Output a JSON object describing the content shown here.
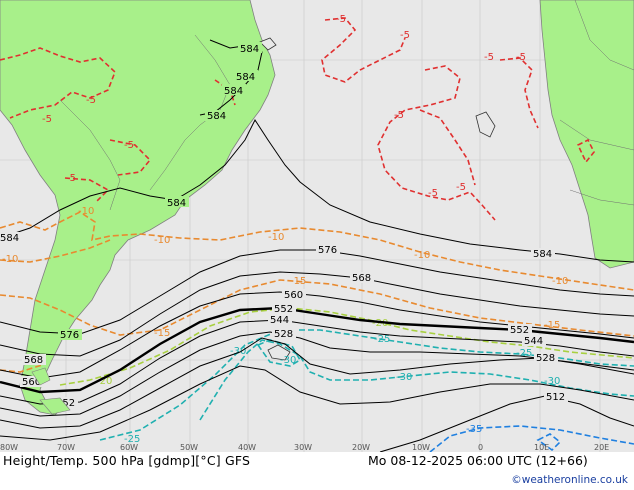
{
  "footer": {
    "title": "Height/Temp. 500 hPa [gdmp][°C] GFS",
    "datetime": "Mo 08-12-2025 06:00 UTC (12+66)",
    "credit": "©weatheronline.co.uk"
  },
  "longitude_labels": [
    "80W",
    "70W",
    "60W",
    "50W",
    "40W",
    "30W",
    "20W",
    "10W",
    "0",
    "10E",
    "20E"
  ],
  "height_labels": {
    "h584": "584",
    "h576": "576",
    "h568": "568",
    "h560": "560",
    "h552": "552",
    "h544": "544",
    "h528": "528",
    "h512": "512"
  },
  "temp_labels": {
    "t5": "-5",
    "t10": "-10",
    "t15": "-15",
    "t20": "-20",
    "t25": "-25",
    "t30": "-30",
    "t35": "-35"
  },
  "colors": {
    "ocean": "#e8e8e8",
    "land": "#a8f08a",
    "height_contour": "#000000",
    "temp_m5": "#e03030",
    "temp_m10_m15": "#e88a30",
    "temp_m20": "#a8d040",
    "temp_m25_m30": "#20b0b0",
    "temp_m35": "#2080e0"
  }
}
